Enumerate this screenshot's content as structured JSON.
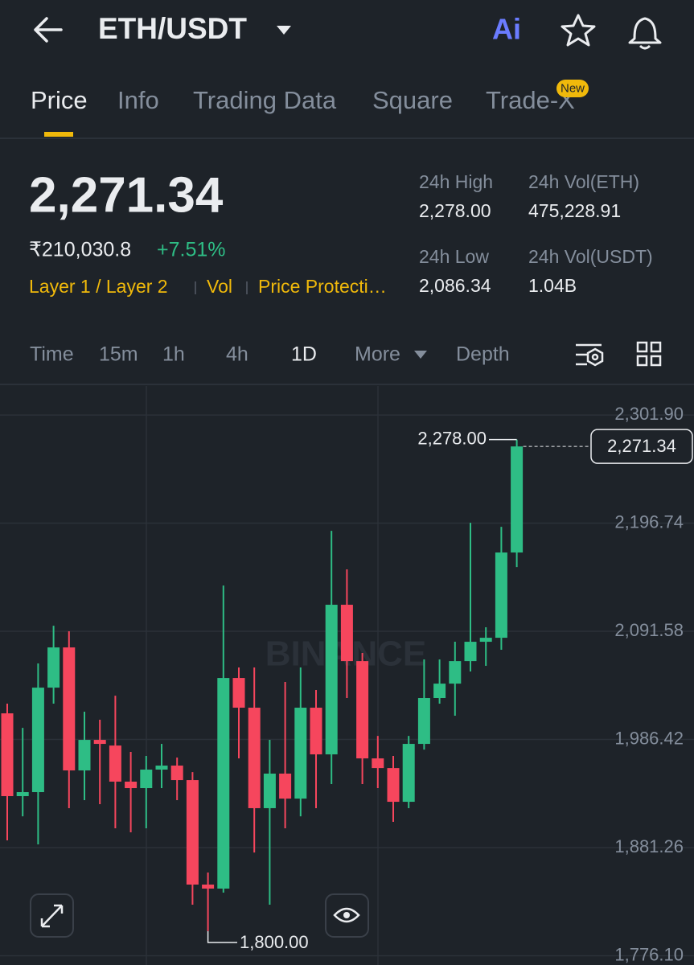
{
  "header": {
    "pair": "ETH/USDT",
    "ai": "Ai"
  },
  "tabs": {
    "items": [
      "Price",
      "Info",
      "Trading Data",
      "Square",
      "Trade-X"
    ],
    "badge": "New",
    "active": 0
  },
  "ticker": {
    "price": "2,271.34",
    "fiat": "₹210,030.8",
    "change": "+7.51%",
    "tags": [
      "Layer 1 / Layer 2",
      "Vol",
      "Price Protecti…"
    ],
    "stats": [
      {
        "label": "24h High",
        "value": "2,278.00"
      },
      {
        "label": "24h Vol(ETH)",
        "value": "475,228.91"
      },
      {
        "label": "24h Low",
        "value": "2,086.34"
      },
      {
        "label": "24h Vol(USDT)",
        "value": "1.04B"
      }
    ]
  },
  "intervals": {
    "items": [
      "Time",
      "15m",
      "1h",
      "4h",
      "1D",
      "More",
      "Depth"
    ],
    "active": 4
  },
  "chart_data": {
    "type": "candlestick",
    "watermark": "BINANCE",
    "open": [
      2011.8,
      1931.3,
      1935.2,
      2036.8,
      2075.9,
      1956.3,
      1986.0,
      1980.5,
      1945.4,
      1939.1,
      1957.1,
      1961.0,
      1946.9,
      1845.3,
      1841.4,
      2046.2,
      2017.3,
      1919.6,
      1953.2,
      1928.9,
      2017.3,
      1971.9,
      2117.4,
      2062.6,
      1968.0,
      1958.6,
      1925.8,
      1982.1,
      2026.7,
      2040.7,
      2062.6,
      2081.4,
      2085.3,
      2168.2
    ],
    "high": [
      2021.2,
      1997.7,
      2060.3,
      2097.0,
      2091.6,
      2013.4,
      2005.6,
      2029.0,
      1974.3,
      1970.4,
      1982.1,
      1968.8,
      1954.7,
      1857.0,
      2136.1,
      2056.4,
      2056.4,
      1986.0,
      2042.3,
      2056.4,
      2034.5,
      2189.3,
      2151.8,
      2070.5,
      1989.9,
      1970.4,
      1989.9,
      2064.2,
      2064.2,
      2081.4,
      2197.1,
      2095.5,
      2193.2,
      2278.0
    ],
    "low": [
      1888.3,
      1911.7,
      1884.4,
      2021.2,
      1919.6,
      1927.4,
      1923.5,
      1900.0,
      1896.1,
      1900.0,
      1939.1,
      1927.4,
      1825.7,
      1800.0,
      1837.5,
      1968.0,
      1876.5,
      1825.7,
      1900.0,
      1911.7,
      1919.6,
      1943.0,
      2026.7,
      1943.0,
      1939.1,
      1906.3,
      1919.6,
      1976.6,
      2021.2,
      2009.5,
      2052.5,
      2058.0,
      2073.6,
      2154.1
    ],
    "close": [
      1931.3,
      1935.2,
      2036.8,
      2075.9,
      1956.3,
      1986.0,
      1982.1,
      1945.4,
      1939.1,
      1957.1,
      1961.0,
      1946.9,
      1845.3,
      1841.4,
      2046.2,
      2017.3,
      1919.6,
      1953.2,
      1928.9,
      2017.3,
      1971.9,
      2117.4,
      2062.6,
      1968.0,
      1958.6,
      1925.8,
      1982.1,
      2026.7,
      2040.7,
      2062.6,
      2081.4,
      2085.3,
      2168.2,
      2271.34
    ],
    "up_color": "#2ebd85",
    "down_color": "#f6465d",
    "ylim": [
      1767.1,
      2330.1
    ],
    "yticks": [
      {
        "value": 2301.9,
        "label": "2,301.90"
      },
      {
        "value": 2196.74,
        "label": "2,196.74"
      },
      {
        "value": 2091.58,
        "label": "2,091.58"
      },
      {
        "value": 1986.42,
        "label": "1,986.42"
      },
      {
        "value": 1881.26,
        "label": "1,881.26"
      },
      {
        "value": 1776.1,
        "label": "1,776.10"
      }
    ],
    "grid": true,
    "high_label": {
      "value": 2278.0,
      "label": "2,278.00"
    },
    "low_label": {
      "value": 1800.0,
      "label": "1,800.00"
    },
    "last_label": {
      "value": 2271.34,
      "label": "2,271.34"
    }
  }
}
